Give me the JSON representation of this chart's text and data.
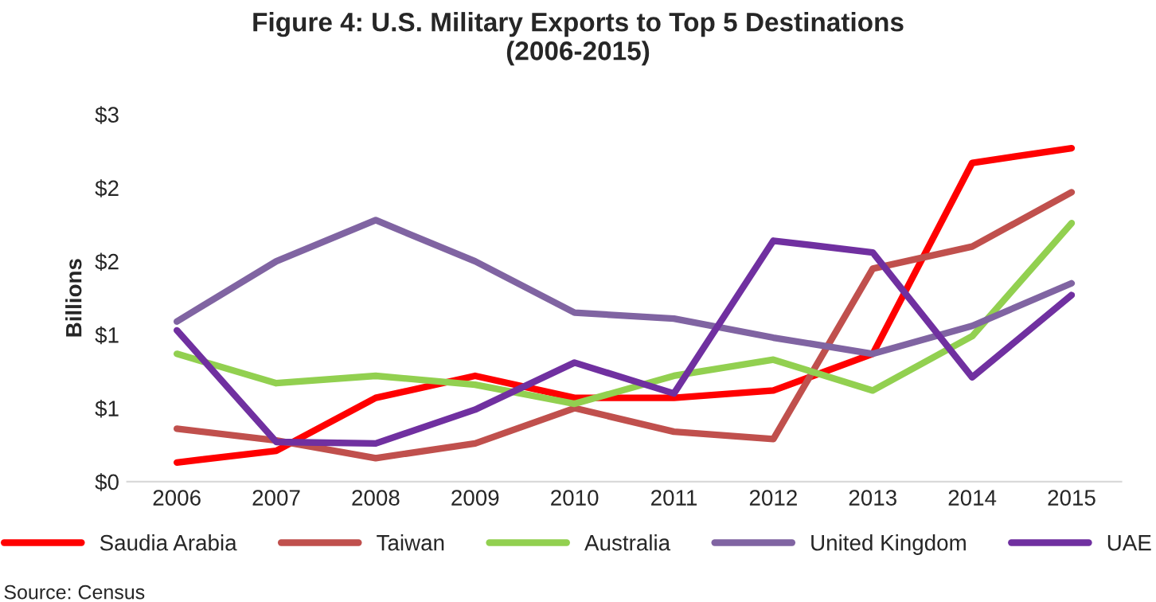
{
  "chart_data": {
    "type": "line",
    "title": "Figure 4: U.S. Military Exports to Top 5 Destinations\n(2006-2015)",
    "ylabel": "Billions",
    "categories": [
      "2006",
      "2007",
      "2008",
      "2009",
      "2010",
      "2011",
      "2012",
      "2013",
      "2014",
      "2015"
    ],
    "series": [
      {
        "name": "Saudia Arabia",
        "color": "#ff0000",
        "values": [
          0.13,
          0.21,
          0.57,
          0.72,
          0.57,
          0.57,
          0.62,
          0.87,
          2.17,
          2.27
        ]
      },
      {
        "name": "Taiwan",
        "color": "#c0504d",
        "values": [
          0.36,
          0.28,
          0.16,
          0.26,
          0.5,
          0.34,
          0.29,
          1.45,
          1.6,
          1.97
        ]
      },
      {
        "name": "Australia",
        "color": "#92d050",
        "values": [
          0.87,
          0.67,
          0.72,
          0.66,
          0.53,
          0.72,
          0.83,
          0.62,
          0.99,
          1.76
        ]
      },
      {
        "name": "United Kingdom",
        "color": "#8064a2",
        "values": [
          1.09,
          1.5,
          1.78,
          1.5,
          1.15,
          1.11,
          0.98,
          0.87,
          1.06,
          1.35
        ]
      },
      {
        "name": "UAE",
        "color": "#7030a0",
        "values": [
          1.03,
          0.27,
          0.26,
          0.49,
          0.81,
          0.6,
          1.64,
          1.56,
          0.71,
          1.27
        ]
      }
    ],
    "ylim": [
      0,
      2.5
    ],
    "yticks": [
      {
        "value": 0,
        "label": "$0"
      },
      {
        "value": 0.5,
        "label": "$1"
      },
      {
        "value": 1,
        "label": "$1"
      },
      {
        "value": 1.5,
        "label": "$2"
      },
      {
        "value": 2,
        "label": "$2"
      },
      {
        "value": 2.5,
        "label": "$3"
      }
    ],
    "grid": false,
    "legend": "bottom",
    "marker": "none",
    "line_style": "solid",
    "annotations": [
      "Source: Census"
    ]
  }
}
